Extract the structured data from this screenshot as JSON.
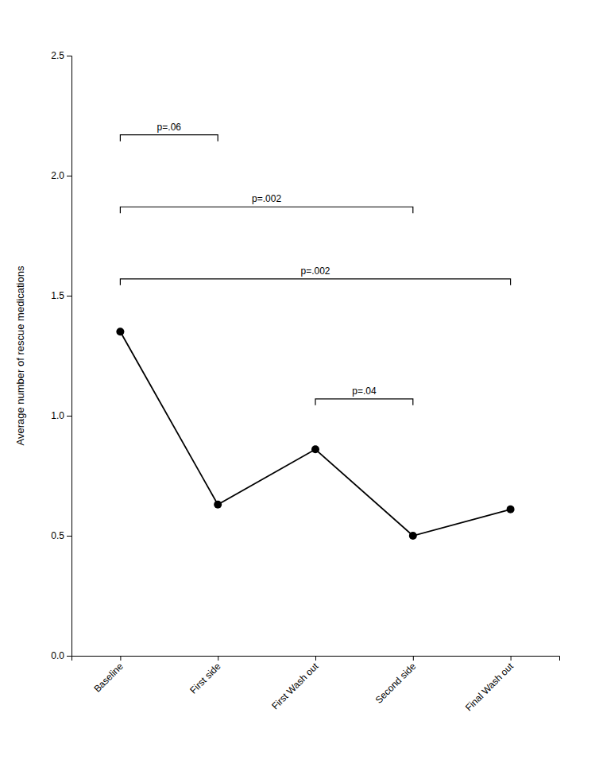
{
  "chart_data": {
    "type": "line",
    "ylabel": "Average number of rescue medications",
    "categories": [
      "Baseline",
      "First side",
      "First Wash out",
      "Second side",
      "Final Wash out"
    ],
    "values": [
      1.35,
      0.63,
      0.86,
      0.5,
      0.61
    ],
    "color": "#000000",
    "marker": "circle",
    "ylim": [
      0.0,
      2.5
    ],
    "yticks": [
      {
        "value": 0.0,
        "label": "0.0"
      },
      0.5,
      {
        "value": 1.0,
        "label": "1.0"
      },
      1.5,
      {
        "value": 2.0,
        "label": "2.0"
      },
      2.5
    ],
    "grid": false,
    "annotations": [
      {
        "text": "p=.06",
        "from": "Baseline",
        "to": "First side",
        "y": 2.17
      },
      {
        "text": "p=.002",
        "from": "Baseline",
        "to": "Second side",
        "y": 1.87
      },
      {
        "text": "p=.002",
        "from": "Baseline",
        "to": "Final Wash out",
        "y": 1.57
      },
      {
        "text": "p=.04",
        "from": "First Wash out",
        "to": "Second side",
        "y": 1.07
      }
    ]
  }
}
